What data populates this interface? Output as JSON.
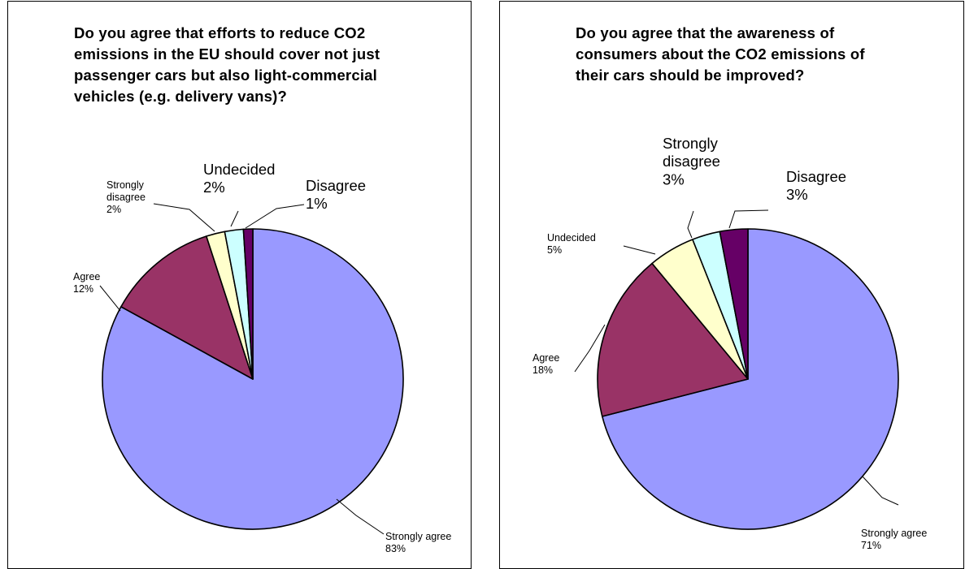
{
  "chart_data": [
    {
      "type": "pie",
      "title": "Do you agree that efforts to reduce CO2\nemissions in the EU should cover not just\npassenger cars but also light-commercial\nvehicles (e.g. delivery vans)?",
      "slices": [
        {
          "label": "Strongly agree",
          "value": 83,
          "value_label": "83%",
          "color": "#9999ff"
        },
        {
          "label": "Agree",
          "value": 12,
          "value_label": "12%",
          "color": "#993366"
        },
        {
          "label": "Strongly\ndisagree",
          "value": 2,
          "value_label": "2%",
          "color": "#ffffcc"
        },
        {
          "label": "Undecided",
          "value": 2,
          "value_label": "2%",
          "color": "#ccffff"
        },
        {
          "label": "Disagree",
          "value": 1,
          "value_label": "1%",
          "color": "#660066"
        }
      ],
      "legend": "none"
    },
    {
      "type": "pie",
      "title": "Do you agree that the awareness of\nconsumers about the CO2 emissions of\ntheir cars should be improved?",
      "slices": [
        {
          "label": "Strongly agree",
          "value": 71,
          "value_label": "71%",
          "color": "#9999ff"
        },
        {
          "label": "Agree",
          "value": 18,
          "value_label": "18%",
          "color": "#993366"
        },
        {
          "label": "Undecided",
          "value": 5,
          "value_label": "5%",
          "color": "#ffffcc"
        },
        {
          "label": "Strongly\ndisagree",
          "value": 3,
          "value_label": "3%",
          "color": "#ccffff"
        },
        {
          "label": "Disagree",
          "value": 3,
          "value_label": "3%",
          "color": "#660066"
        }
      ],
      "legend": "none"
    }
  ]
}
